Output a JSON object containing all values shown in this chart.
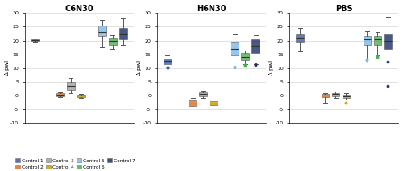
{
  "panels": [
    "C6N30",
    "H6N30",
    "PBS"
  ],
  "controls": [
    "Control 1",
    "Control 2",
    "Control 3",
    "Control 4",
    "Control 5",
    "Control 6",
    "Control 7"
  ],
  "colors": [
    "#3B5BA5",
    "#E07020",
    "#A0A0A0",
    "#C8A000",
    "#7DB8E8",
    "#4CAF50",
    "#1A2F6B"
  ],
  "ylabel": "Δ pwI",
  "ylim": [
    -10.0,
    30.0
  ],
  "yticks": [
    -10.0,
    -5.0,
    0.0,
    5.0,
    10.0,
    15.0,
    20.0,
    25.0,
    30.0
  ],
  "dashed_line_y": 10.5,
  "x_positions": [
    1.0,
    2.2,
    2.7,
    3.2,
    4.2,
    4.7,
    5.2
  ],
  "box_width": 0.38,
  "box_data": {
    "C6N30": {
      "Control 1": {
        "q1": 19.8,
        "median": 20.1,
        "q3": 20.4,
        "whislo": 19.5,
        "whishi": 20.8,
        "fliers": []
      },
      "Control 2": {
        "q1": -0.2,
        "median": 0.2,
        "q3": 0.8,
        "whislo": -0.5,
        "whishi": 1.2,
        "fliers": []
      },
      "Control 3": {
        "q1": 2.0,
        "median": 3.5,
        "q3": 5.0,
        "whislo": 1.0,
        "whishi": 6.5,
        "fliers": []
      },
      "Control 4": {
        "q1": -0.5,
        "median": -0.1,
        "q3": 0.3,
        "whislo": -0.8,
        "whishi": 0.5,
        "fliers": []
      },
      "Control 5": {
        "q1": 21.5,
        "median": 23.0,
        "q3": 25.5,
        "whislo": 17.5,
        "whishi": 27.5,
        "fliers": []
      },
      "Control 6": {
        "q1": 18.5,
        "median": 20.0,
        "q3": 21.0,
        "whislo": 17.0,
        "whishi": 22.0,
        "fliers": []
      },
      "Control 7": {
        "q1": 20.5,
        "median": 22.5,
        "q3": 24.5,
        "whislo": 18.5,
        "whishi": 28.0,
        "fliers": []
      }
    },
    "H6N30": {
      "Control 1": {
        "q1": 11.5,
        "median": 12.5,
        "q3": 13.2,
        "whislo": 10.5,
        "whishi": 14.5,
        "fliers": [
          10.1,
          10.3
        ]
      },
      "Control 2": {
        "q1": -3.8,
        "median": -2.8,
        "q3": -1.8,
        "whislo": -5.8,
        "whishi": -0.8,
        "fliers": []
      },
      "Control 3": {
        "q1": -0.3,
        "median": 0.5,
        "q3": 1.2,
        "whislo": -0.8,
        "whishi": 1.8,
        "fliers": []
      },
      "Control 4": {
        "q1": -3.5,
        "median": -2.8,
        "q3": -2.0,
        "whislo": -4.5,
        "whishi": -1.5,
        "fliers": []
      },
      "Control 5": {
        "q1": 14.5,
        "median": 17.0,
        "q3": 19.5,
        "whislo": 10.5,
        "whishi": 22.5,
        "fliers": [
          10.2,
          10.4
        ]
      },
      "Control 6": {
        "q1": 13.0,
        "median": 14.0,
        "q3": 15.5,
        "whislo": 11.5,
        "whishi": 16.5,
        "fliers": [
          10.8,
          11.0
        ]
      },
      "Control 7": {
        "q1": 15.5,
        "median": 18.0,
        "q3": 20.5,
        "whislo": 11.5,
        "whishi": 22.0,
        "fliers": [
          11.2,
          11.4
        ]
      }
    },
    "PBS": {
      "Control 1": {
        "q1": 19.5,
        "median": 21.0,
        "q3": 22.5,
        "whislo": 16.0,
        "whishi": 24.5,
        "fliers": []
      },
      "Control 2": {
        "q1": -0.5,
        "median": 0.0,
        "q3": 0.5,
        "whislo": -2.5,
        "whishi": 0.8,
        "fliers": []
      },
      "Control 3": {
        "q1": -0.2,
        "median": 0.5,
        "q3": 1.0,
        "whislo": -0.8,
        "whishi": 1.5,
        "fliers": []
      },
      "Control 4": {
        "q1": -0.8,
        "median": -0.2,
        "q3": 0.3,
        "whislo": -1.5,
        "whishi": 0.8,
        "fliers": [
          -2.5
        ]
      },
      "Control 5": {
        "q1": 18.5,
        "median": 20.5,
        "q3": 21.5,
        "whislo": 13.5,
        "whishi": 23.5,
        "fliers": [
          13.0,
          13.2
        ]
      },
      "Control 6": {
        "q1": 18.5,
        "median": 20.5,
        "q3": 21.5,
        "whislo": 14.5,
        "whishi": 23.0,
        "fliers": [
          14.0,
          14.2
        ]
      },
      "Control 7": {
        "q1": 17.0,
        "median": 20.0,
        "q3": 22.5,
        "whislo": 12.0,
        "whishi": 28.5,
        "fliers": [
          12.2,
          3.5
        ]
      }
    }
  },
  "legend_order": [
    0,
    1,
    2,
    3,
    4,
    5,
    6
  ],
  "legend_ncols": 4,
  "background_color": "#FFFFFF",
  "grid_color": "#CCCCCC"
}
